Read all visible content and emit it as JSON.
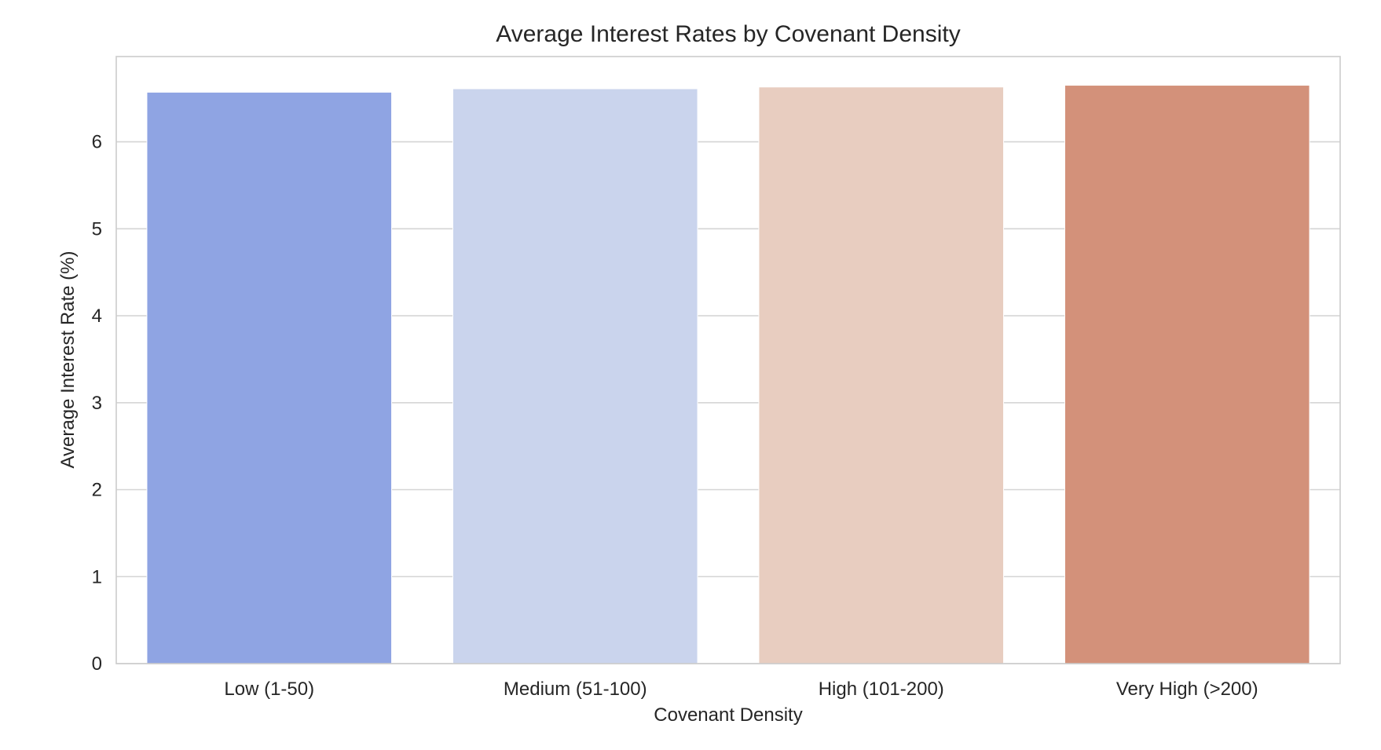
{
  "chart_data": {
    "type": "bar",
    "title": "Average Interest Rates by Covenant Density",
    "xlabel": "Covenant Density",
    "ylabel": "Average Interest Rate (%)",
    "categories": [
      "Low (1-50)",
      "Medium (51-100)",
      "High (101-200)",
      "Very High (>200)"
    ],
    "values": [
      6.57,
      6.61,
      6.63,
      6.65
    ],
    "bar_colors": [
      "#8fa4e3",
      "#cad4ed",
      "#e8cdc0",
      "#d3917a"
    ],
    "ylim": [
      0,
      6.98
    ],
    "yticks": [
      0,
      1,
      2,
      3,
      4,
      5,
      6
    ],
    "ytick_labels": [
      "0",
      "1",
      "2",
      "3",
      "4",
      "5",
      "6"
    ],
    "grid": true,
    "grid_axis": "y",
    "legend": false
  }
}
